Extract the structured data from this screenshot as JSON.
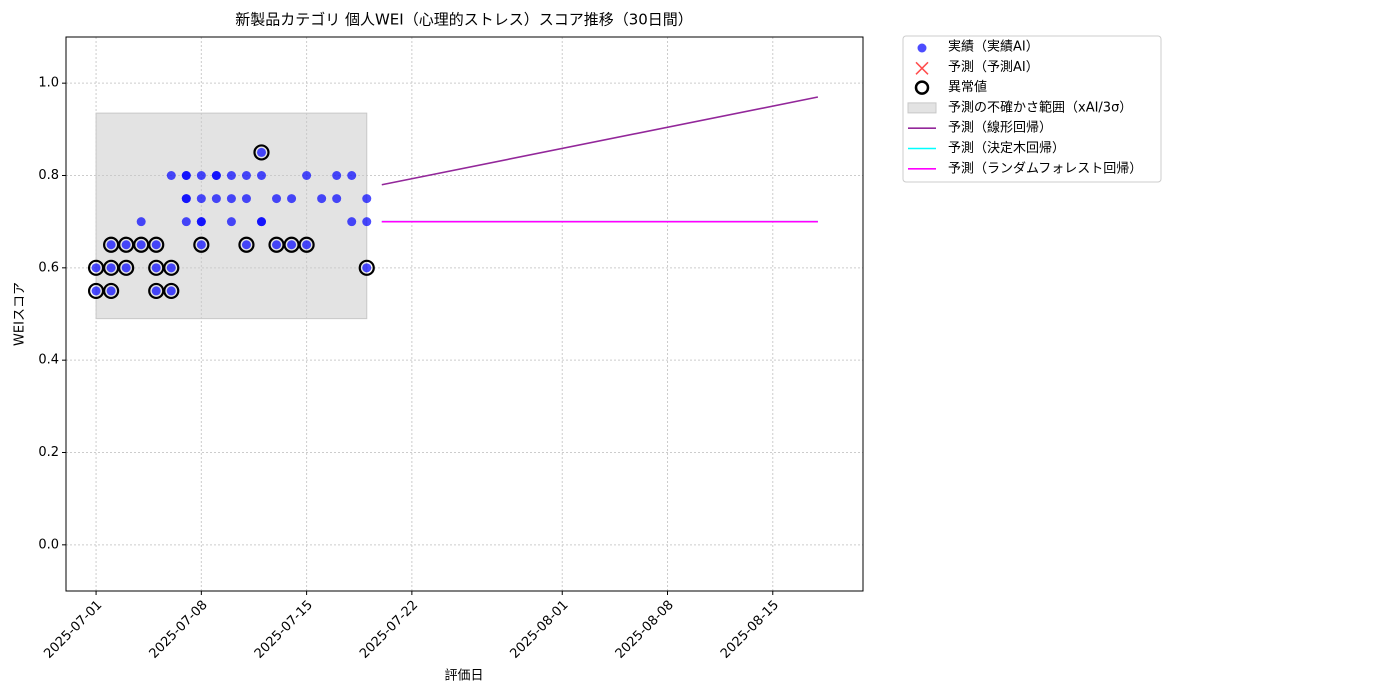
{
  "chart_data": {
    "type": "scatter",
    "title": "新製品カテゴリ 個人WEI（心理的ストレス）スコア推移（30日間）",
    "x_label": "評価日",
    "y_label": "WEIスコア",
    "xlim": [
      "2025-06-29",
      "2025-08-21"
    ],
    "xticks": [
      "2025-07-01",
      "2025-07-08",
      "2025-07-15",
      "2025-07-22",
      "2025-08-01",
      "2025-08-08",
      "2025-08-15"
    ],
    "ylim": [
      -0.1,
      1.1
    ],
    "yticks": [
      {
        "value": 0,
        "label": "0.0"
      },
      0.2,
      0.4,
      0.6,
      0.8,
      {
        "value": 1,
        "label": "1.0"
      }
    ],
    "grid": true,
    "legend": "outside",
    "series": [
      {
        "name": "実績（実績AI）",
        "kind": "scatter",
        "color": "#0000ff",
        "x": [
          "2025-07-01",
          "2025-07-01",
          "2025-07-02",
          "2025-07-02",
          "2025-07-02",
          "2025-07-03",
          "2025-07-03",
          "2025-07-04",
          "2025-07-04",
          "2025-07-05",
          "2025-07-05",
          "2025-07-05",
          "2025-07-06",
          "2025-07-06",
          "2025-07-06",
          "2025-07-07",
          "2025-07-07",
          "2025-07-07",
          "2025-07-07",
          "2025-07-07",
          "2025-07-08",
          "2025-07-08",
          "2025-07-08",
          "2025-07-08",
          "2025-07-08",
          "2025-07-09",
          "2025-07-09",
          "2025-07-09",
          "2025-07-10",
          "2025-07-10",
          "2025-07-10",
          "2025-07-11",
          "2025-07-11",
          "2025-07-11",
          "2025-07-12",
          "2025-07-12",
          "2025-07-12",
          "2025-07-12",
          "2025-07-13",
          "2025-07-13",
          "2025-07-14",
          "2025-07-14",
          "2025-07-15",
          "2025-07-15",
          "2025-07-16",
          "2025-07-17",
          "2025-07-17",
          "2025-07-18",
          "2025-07-18",
          "2025-07-19",
          "2025-07-19",
          "2025-07-19"
        ],
        "values": [
          0.6,
          0.55,
          0.6,
          0.65,
          0.55,
          0.65,
          0.6,
          0.65,
          0.7,
          0.6,
          0.65,
          0.55,
          0.6,
          0.55,
          0.8,
          0.75,
          0.7,
          0.75,
          0.8,
          0.8,
          0.7,
          0.65,
          0.75,
          0.7,
          0.8,
          0.8,
          0.75,
          0.8,
          0.75,
          0.8,
          0.7,
          0.8,
          0.75,
          0.65,
          0.7,
          0.8,
          0.85,
          0.7,
          0.75,
          0.65,
          0.65,
          0.75,
          0.8,
          0.65,
          0.75,
          0.8,
          0.75,
          0.8,
          0.7,
          0.7,
          0.75,
          0.6
        ]
      },
      {
        "name": "予測（予測AI）",
        "kind": "cross",
        "color": "#ff0000",
        "x": [],
        "values": []
      },
      {
        "name": "異常値",
        "kind": "ring",
        "color": "#000000",
        "x": [
          "2025-07-01",
          "2025-07-01",
          "2025-07-02",
          "2025-07-02",
          "2025-07-02",
          "2025-07-03",
          "2025-07-03",
          "2025-07-04",
          "2025-07-05",
          "2025-07-05",
          "2025-07-05",
          "2025-07-06",
          "2025-07-06",
          "2025-07-08",
          "2025-07-11",
          "2025-07-12",
          "2025-07-13",
          "2025-07-14",
          "2025-07-15",
          "2025-07-19"
        ],
        "values": [
          0.6,
          0.55,
          0.6,
          0.65,
          0.55,
          0.65,
          0.6,
          0.65,
          0.6,
          0.65,
          0.55,
          0.6,
          0.55,
          0.65,
          0.65,
          0.85,
          0.65,
          0.65,
          0.65,
          0.6
        ]
      },
      {
        "name": "予測の不確かさ範囲（xAI/3σ）",
        "kind": "band",
        "color": "#c8c8c8",
        "x": [
          "2025-07-01",
          "2025-07-19"
        ],
        "lower": [
          0.49,
          0.49
        ],
        "upper": [
          0.935,
          0.935
        ]
      },
      {
        "name": "予測（線形回帰）",
        "kind": "line",
        "color": "#93279a",
        "x": [
          "2025-07-20",
          "2025-08-18"
        ],
        "values": [
          0.78,
          0.97
        ]
      },
      {
        "name": "予測（決定木回帰）",
        "kind": "line",
        "color": "#00ffff",
        "x": [
          "2025-07-20",
          "2025-08-18"
        ],
        "values": [
          0.7,
          0.7
        ]
      },
      {
        "name": "予測（ランダムフォレスト回帰）",
        "kind": "line",
        "color": "#ff00ff",
        "x": [
          "2025-07-20",
          "2025-08-18"
        ],
        "values": [
          0.7,
          0.7
        ]
      }
    ]
  }
}
